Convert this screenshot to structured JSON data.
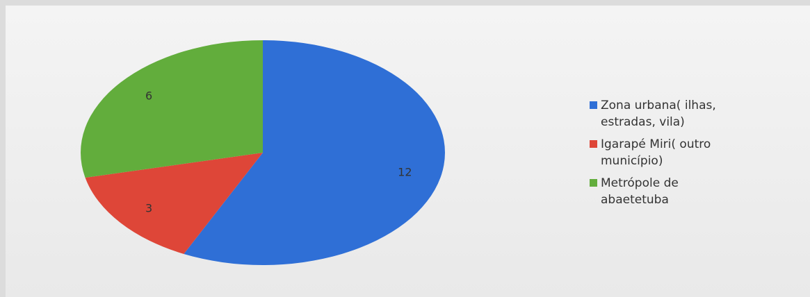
{
  "chart_data": {
    "type": "pie",
    "categories": [
      "Zona urbana( ilhas, estradas, vila)",
      "Igarapé Miri( outro município)",
      "Metrópole de abaetetuba"
    ],
    "values": [
      12,
      3,
      6
    ],
    "colors": [
      "#2f6fd6",
      "#de4638",
      "#62ad3c"
    ],
    "legend": "right"
  }
}
